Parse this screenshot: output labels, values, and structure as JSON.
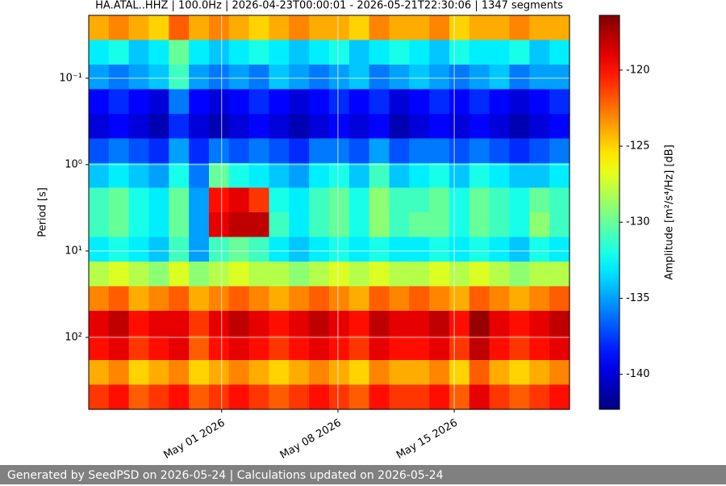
{
  "chart_data": {
    "type": "spectrogram",
    "title": "HA.ATAL..HHZ | 100.0Hz | 2026-04-23T00:00:01 - 2026-05-21T22:30:06 | 1347 segments",
    "ylabel": "Period [s]",
    "colorbar_label": "Amplitude [m²/s⁴/Hz] [dB]",
    "xlim": [
      "2026-04-23T00:00:01",
      "2026-05-21T22:30:06"
    ],
    "xticks": [
      {
        "value": "2026-05-01",
        "label": "May 01 2026"
      },
      {
        "value": "2026-05-08",
        "label": "May 08 2026"
      },
      {
        "value": "2026-05-15",
        "label": "May 15 2026"
      }
    ],
    "ylim": [
      0.0187,
      680
    ],
    "y_log": true,
    "y_inverted": true,
    "yticks": [
      {
        "value": 0.1,
        "label": "10⁻¹"
      },
      {
        "value": 1,
        "label": "10⁰"
      },
      {
        "value": 10,
        "label": "10¹"
      },
      {
        "value": 100,
        "label": "10²"
      }
    ],
    "grid": true,
    "colormap": "jet",
    "clim": [
      -142.3,
      -116.4
    ],
    "cticks": [
      -140,
      -135,
      -130,
      -125,
      -120
    ],
    "z": [
      [
        -124,
        -123,
        -124,
        -125,
        -122,
        -124,
        -123,
        -124,
        -125,
        -124,
        -123,
        -124,
        -124,
        -125,
        -123,
        -124,
        -124,
        -123,
        -125,
        -124,
        -124,
        -123,
        -124,
        -124
      ],
      [
        -133,
        -132,
        -134,
        -133,
        -130,
        -133,
        -134,
        -133,
        -132,
        -133,
        -134,
        -133,
        -132,
        -134,
        -133,
        -132,
        -133,
        -134,
        -132,
        -133,
        -133,
        -132,
        -134,
        -133
      ],
      [
        -135,
        -136,
        -135,
        -134,
        -131,
        -135,
        -136,
        -135,
        -136,
        -134,
        -135,
        -136,
        -135,
        -134,
        -136,
        -135,
        -134,
        -135,
        -136,
        -135,
        -134,
        -136,
        -135,
        -135
      ],
      [
        -139,
        -138,
        -139,
        -140,
        -136,
        -139,
        -140,
        -139,
        -138,
        -139,
        -140,
        -139,
        -138,
        -139,
        -138,
        -140,
        -139,
        -138,
        -139,
        -138,
        -139,
        -140,
        -139,
        -138
      ],
      [
        -140,
        -139,
        -140,
        -141,
        -138,
        -140,
        -141,
        -140,
        -139,
        -140,
        -141,
        -140,
        -139,
        -140,
        -139,
        -141,
        -140,
        -139,
        -140,
        -139,
        -140,
        -141,
        -140,
        -139
      ],
      [
        -137,
        -136,
        -137,
        -138,
        -135,
        -138,
        -136,
        -137,
        -136,
        -137,
        -138,
        -136,
        -136,
        -137,
        -135,
        -137,
        -136,
        -136,
        -137,
        -136,
        -137,
        -138,
        -137,
        -136
      ],
      [
        -134,
        -133,
        -134,
        -135,
        -132,
        -136,
        -130,
        -132,
        -133,
        -134,
        -135,
        -133,
        -132,
        -134,
        -131,
        -134,
        -133,
        -132,
        -134,
        -132,
        -133,
        -134,
        -134,
        -133
      ],
      [
        -131,
        -130,
        -132,
        -133,
        -130,
        -135,
        -120,
        -119,
        -121,
        -132,
        -133,
        -131,
        -130,
        -132,
        -129,
        -131,
        -131,
        -130,
        -132,
        -130,
        -131,
        -132,
        -130,
        -131
      ],
      [
        -131,
        -130,
        -132,
        -133,
        -130,
        -135,
        -119,
        -118,
        -118,
        -131,
        -133,
        -131,
        -130,
        -132,
        -129,
        -131,
        -130,
        -130,
        -132,
        -130,
        -131,
        -132,
        -129,
        -131
      ],
      [
        -133,
        -132,
        -133,
        -134,
        -131,
        -135,
        -131,
        -130,
        -131,
        -133,
        -134,
        -133,
        -132,
        -133,
        -132,
        -133,
        -133,
        -132,
        -133,
        -132,
        -133,
        -134,
        -132,
        -133
      ],
      [
        -128,
        -127,
        -128,
        -129,
        -127,
        -129,
        -128,
        -127,
        -128,
        -128,
        -129,
        -128,
        -127,
        -128,
        -127,
        -128,
        -128,
        -127,
        -128,
        -127,
        -128,
        -129,
        -128,
        -128
      ],
      [
        -123,
        -122,
        -124,
        -123,
        -122,
        -124,
        -123,
        -122,
        -123,
        -124,
        -123,
        -122,
        -123,
        -124,
        -122,
        -123,
        -122,
        -123,
        -124,
        -122,
        -123,
        -124,
        -123,
        -122
      ],
      [
        -119,
        -118,
        -120,
        -119,
        -119,
        -121,
        -119,
        -118,
        -119,
        -120,
        -119,
        -118,
        -119,
        -120,
        -118,
        -119,
        -119,
        -118,
        -120,
        -117,
        -119,
        -120,
        -119,
        -118
      ],
      [
        -120,
        -119,
        -121,
        -120,
        -119,
        -122,
        -120,
        -119,
        -120,
        -121,
        -120,
        -119,
        -120,
        -121,
        -119,
        -120,
        -120,
        -119,
        -121,
        -118,
        -120,
        -121,
        -120,
        -119
      ],
      [
        -124,
        -123,
        -125,
        -124,
        -123,
        -125,
        -124,
        -123,
        -124,
        -125,
        -124,
        -123,
        -124,
        -125,
        -123,
        -124,
        -124,
        -123,
        -125,
        -122,
        -124,
        -125,
        -124,
        -123
      ],
      [
        -121,
        -120,
        -122,
        -121,
        -120,
        -122,
        -121,
        -120,
        -121,
        -122,
        -121,
        -120,
        -121,
        -122,
        -120,
        -121,
        -121,
        -120,
        -122,
        -119,
        -121,
        -122,
        -121,
        -120
      ]
    ]
  },
  "footer": "Generated by SeedPSD on 2026-05-24 | Calculations updated on 2026-05-24"
}
